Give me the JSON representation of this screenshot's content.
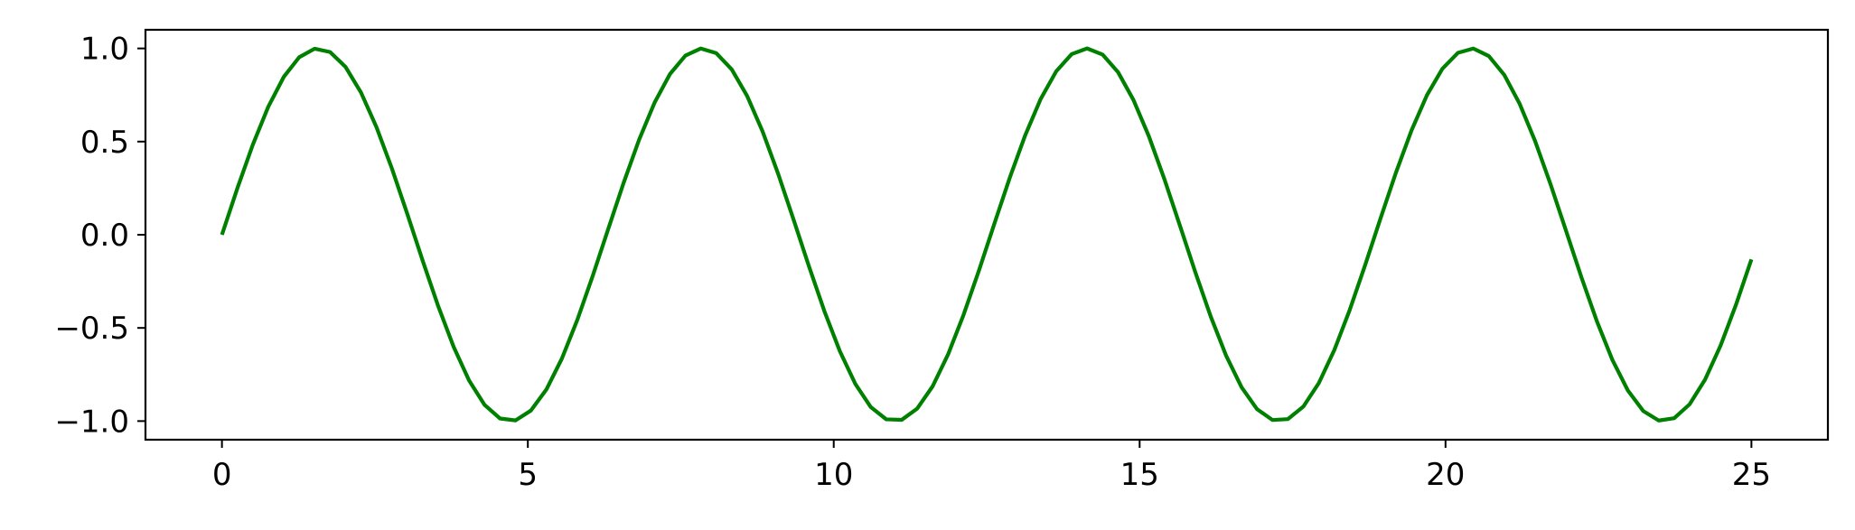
{
  "chart_data": {
    "type": "line",
    "title": "",
    "xlabel": "",
    "ylabel": "",
    "xlim": [
      -1.25,
      26.25
    ],
    "ylim": [
      -1.1,
      1.1
    ],
    "x_ticks": [
      0,
      5,
      10,
      15,
      20,
      25
    ],
    "x_tick_labels": [
      "0",
      "5",
      "10",
      "15",
      "20",
      "25"
    ],
    "y_ticks": [
      1.0,
      0.5,
      0.0,
      -0.5,
      -1.0
    ],
    "y_tick_labels": [
      "1.0",
      "0.5",
      "0.0",
      "−0.5",
      "−1.0"
    ],
    "grid": false,
    "legend": "none",
    "series": [
      {
        "name": "sin(x)",
        "function": "sin",
        "x_start": 0,
        "x_end": 25,
        "num_points": 100,
        "color": "#008000"
      }
    ]
  }
}
